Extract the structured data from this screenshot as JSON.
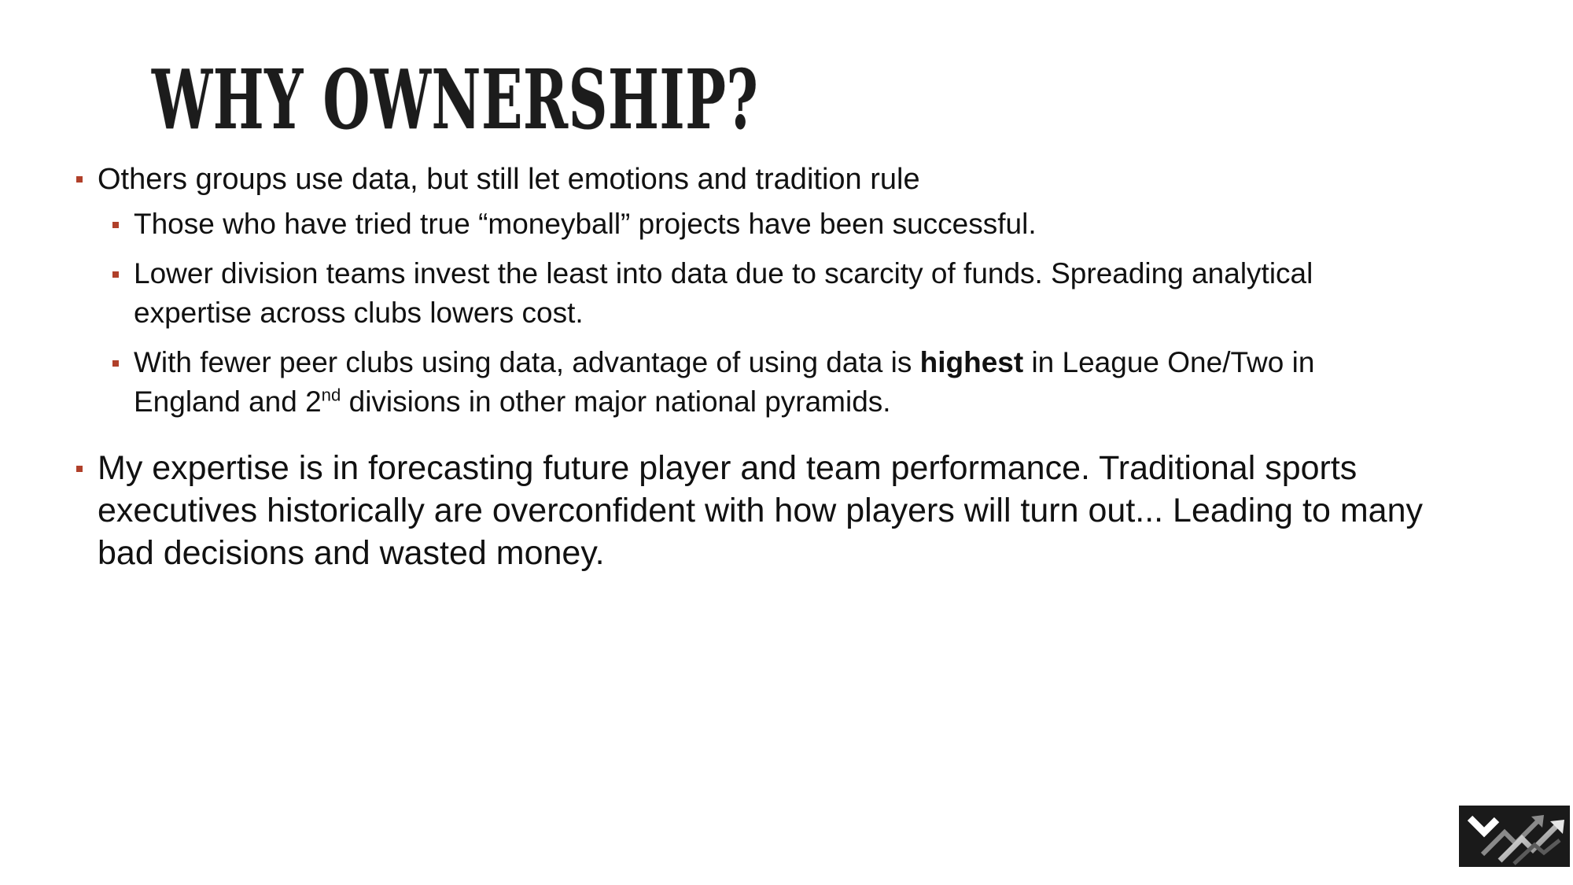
{
  "slide": {
    "title": "WHY OWNERSHIP?",
    "bullets": [
      {
        "text": "Others groups use data, but still let emotions and tradition rule",
        "sub": [
          {
            "text": "Those who have tried true “moneyball” projects have been successful."
          },
          {
            "line1": "Lower division teams invest the least into data due to scarcity of funds. Spreading analytical",
            "line2": "expertise across clubs lowers cost."
          },
          {
            "line1_pre": "With fewer peer clubs using data, advantage of using data is ",
            "line1_bold": "highest",
            "line1_post": " in League One/Two in",
            "line2_pre": "England and 2",
            "line2_sup": "nd",
            "line2_post": " divisions in other major national pyramids."
          }
        ]
      },
      {
        "line1": "My expertise is in forecasting future player and team performance. Traditional sports",
        "line2": "executives historically are overconfident with how players will turn out... Leading to many",
        "line3": "bad decisions and wasted money."
      }
    ]
  },
  "colors": {
    "bullet_marker": "#b0402a",
    "title": "#1c1c1c",
    "logo_bg": "#1a1a1a"
  },
  "logo": {
    "icon": "rising-arrows-logo-icon"
  }
}
